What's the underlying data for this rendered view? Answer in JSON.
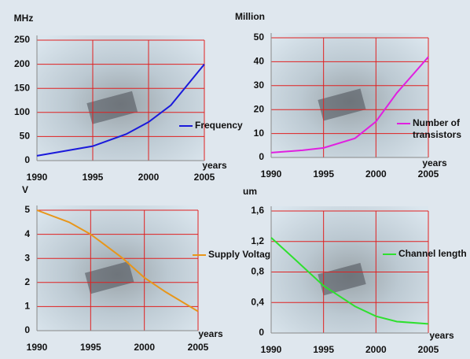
{
  "chart_data": [
    {
      "type": "line",
      "y_label": "MHz",
      "x_label": "years",
      "xlim": [
        1990,
        2005
      ],
      "xticks": [
        1990,
        1995,
        2000,
        2005
      ],
      "ylim": [
        0,
        250
      ],
      "yticks": [
        0,
        50,
        100,
        150,
        200,
        250
      ],
      "grid": true,
      "x": [
        1990,
        1992,
        1995,
        1998,
        2000,
        2002,
        2005
      ],
      "series": [
        {
          "name": "Frequency",
          "color": "#1a1adb",
          "values": [
            10,
            18,
            30,
            55,
            80,
            115,
            200
          ]
        }
      ]
    },
    {
      "type": "line",
      "y_label": "Million",
      "x_label": "years",
      "xlim": [
        1990,
        2005
      ],
      "xticks": [
        1990,
        1995,
        2000,
        2005
      ],
      "ylim": [
        0,
        50
      ],
      "yticks": [
        0,
        10,
        20,
        30,
        40,
        50
      ],
      "grid": true,
      "x": [
        1990,
        1993,
        1995,
        1998,
        2000,
        2002,
        2005
      ],
      "series": [
        {
          "name": "Number of transistors",
          "color": "#e020e0",
          "values": [
            2,
            3,
            4,
            8,
            15,
            27,
            42
          ]
        }
      ]
    },
    {
      "type": "line",
      "y_label": "V",
      "x_label": "years",
      "xlim": [
        1990,
        2005
      ],
      "xticks": [
        1990,
        1995,
        2000,
        2005
      ],
      "ylim": [
        0,
        5
      ],
      "yticks": [
        0,
        1,
        2,
        3,
        4,
        5
      ],
      "grid": true,
      "x": [
        1990,
        1993,
        1995,
        1998,
        2000,
        2002,
        2005
      ],
      "series": [
        {
          "name": "Supply Voltage",
          "color": "#e8961a",
          "values": [
            5,
            4.5,
            4,
            3,
            2.2,
            1.6,
            0.8
          ]
        }
      ]
    },
    {
      "type": "line",
      "y_label": "um",
      "x_label": "years",
      "xlim": [
        1990,
        2005
      ],
      "xticks": [
        1990,
        1995,
        2000,
        2005
      ],
      "ylim": [
        0,
        1.6
      ],
      "yticks": [
        0,
        {
          "value": 0.4,
          "label": "0,4"
        },
        {
          "value": 0.8,
          "label": "0,8"
        },
        {
          "value": 1.2,
          "label": "1,2"
        },
        {
          "value": 1.6,
          "label": "1,6"
        }
      ],
      "grid": true,
      "x": [
        1990,
        1992,
        1995,
        1998,
        2000,
        2002,
        2005
      ],
      "series": [
        {
          "name": "Channel length",
          "color": "#2ee02e",
          "values": [
            1.25,
            1.0,
            0.62,
            0.35,
            0.22,
            0.15,
            0.12
          ]
        }
      ]
    }
  ]
}
